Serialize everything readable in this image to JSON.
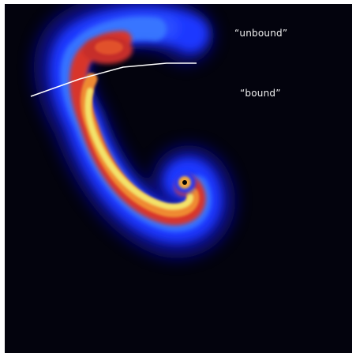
{
  "image": {
    "background_color": "#03030d",
    "colormap": [
      "#0a0a6e",
      "#1a36ff",
      "#2f7bff",
      "#d8342a",
      "#f08a32",
      "#f4e86a"
    ]
  },
  "labels": {
    "unbound": "“unbound”",
    "bound": "“bound”"
  }
}
